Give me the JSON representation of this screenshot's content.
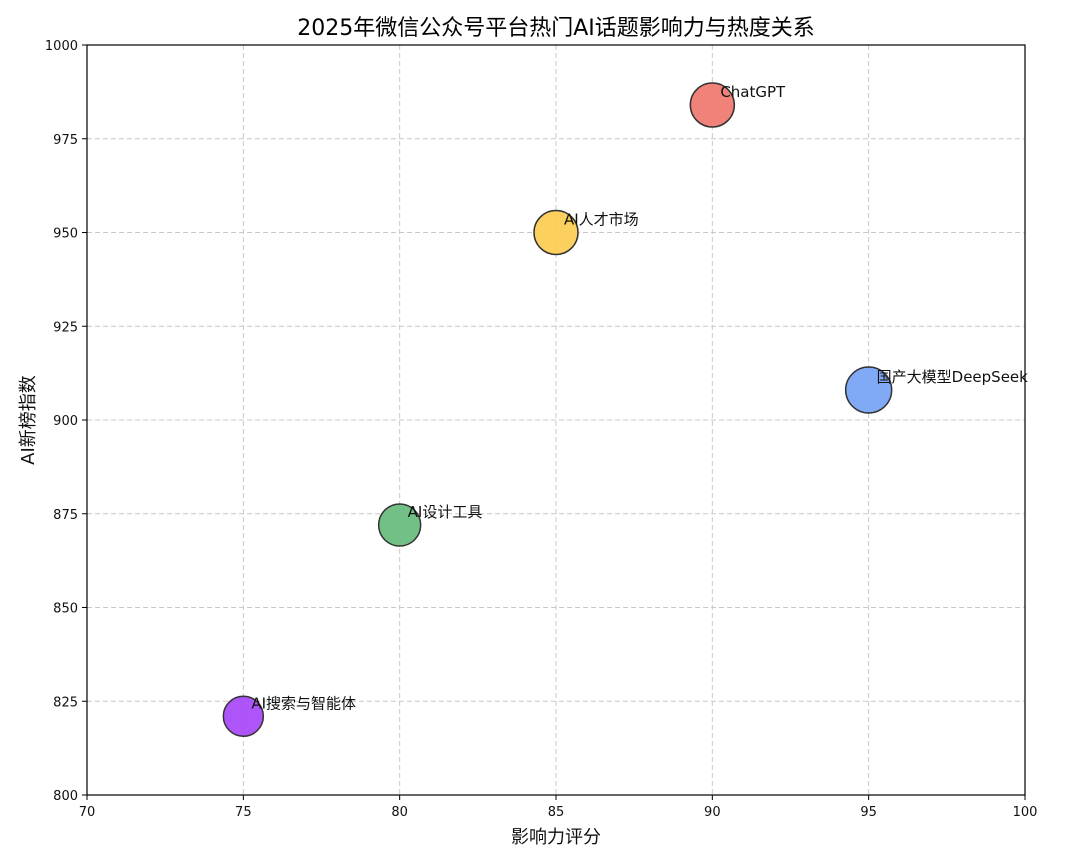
{
  "chart_data": {
    "type": "scatter",
    "subtype": "bubble",
    "title": "2025年微信公众号平台热门AI话题影响力与热度关系",
    "xlabel": "影响力评分",
    "ylabel": "AI新榜指数",
    "xlim": [
      70,
      100
    ],
    "ylim": [
      800,
      1000
    ],
    "xticks": [
      70,
      75,
      80,
      85,
      90,
      95,
      100
    ],
    "yticks": [
      800,
      825,
      850,
      875,
      900,
      925,
      950,
      975,
      1000
    ],
    "grid": true,
    "grid_style": "dashed",
    "legend": null,
    "points": [
      {
        "label": "ChatGPT",
        "x": 90,
        "y": 984,
        "size": 22,
        "color": "#f07b72"
      },
      {
        "label": "AI人才市场",
        "x": 85,
        "y": 950,
        "size": 22,
        "color": "#fcce55"
      },
      {
        "label": "国产大模型DeepSeek",
        "x": 95,
        "y": 908,
        "size": 23,
        "color": "#7aa5f5"
      },
      {
        "label": "AI设计工具",
        "x": 80,
        "y": 872,
        "size": 21,
        "color": "#6cbd7f"
      },
      {
        "label": "AI搜索与智能体",
        "x": 75,
        "y": 821,
        "size": 20,
        "color": "#a94cf9"
      }
    ]
  },
  "labels": {
    "title": "2025年微信公众号平台热门AI话题影响力与热度关系",
    "xlabel": "影响力评分",
    "ylabel": "AI新榜指数"
  }
}
